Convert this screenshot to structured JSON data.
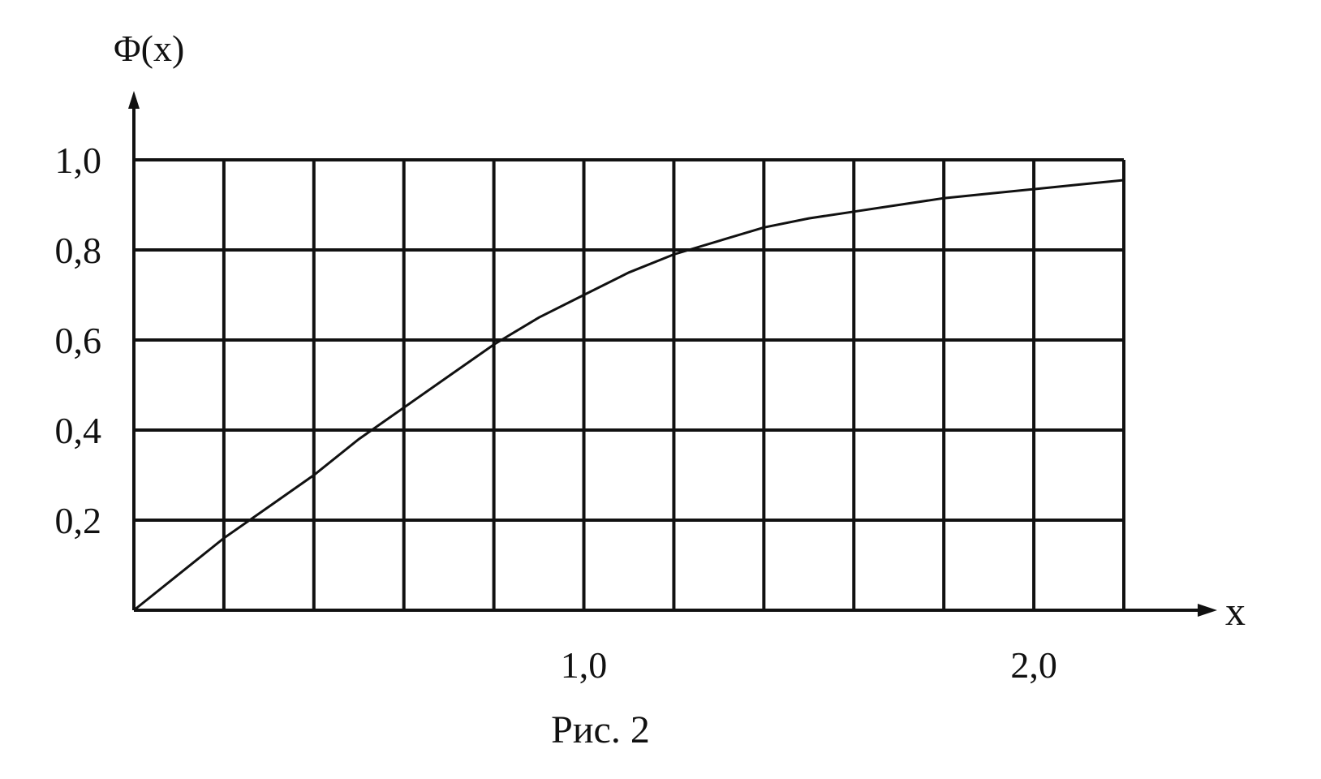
{
  "figure": {
    "caption": "Рис. 2"
  },
  "chart_data": {
    "type": "line",
    "xlabel": "x",
    "ylabel": "Φ(x)",
    "xlim": [
      0,
      2.2
    ],
    "ylim": [
      0,
      1.0
    ],
    "grid": true,
    "x_gridlines": [
      0.2,
      0.4,
      0.6,
      0.8,
      1.0,
      1.2,
      1.4,
      1.6,
      1.8,
      2.0,
      2.2
    ],
    "y_gridlines": [
      0.2,
      0.4,
      0.6,
      0.8,
      1.0
    ],
    "x_ticks": [
      {
        "value": 1.0,
        "label": "1,0"
      },
      {
        "value": 2.0,
        "label": "2,0"
      }
    ],
    "y_ticks": [
      {
        "value": 0.2,
        "label": "0,2"
      },
      {
        "value": 0.4,
        "label": "0,4"
      },
      {
        "value": 0.6,
        "label": "0,6"
      },
      {
        "value": 0.8,
        "label": "0,8"
      },
      {
        "value": 1.0,
        "label": "1,0"
      }
    ],
    "series": [
      {
        "x": [
          0,
          0.1,
          0.2,
          0.3,
          0.4,
          0.5,
          0.6,
          0.7,
          0.8,
          0.9,
          1.0,
          1.1,
          1.2,
          1.3,
          1.4,
          1.5,
          1.6,
          1.7,
          1.8,
          1.9,
          2.0,
          2.1,
          2.2
        ],
        "y": [
          0,
          0.08,
          0.16,
          0.23,
          0.3,
          0.38,
          0.45,
          0.52,
          0.59,
          0.65,
          0.7,
          0.75,
          0.79,
          0.82,
          0.85,
          0.87,
          0.885,
          0.9,
          0.915,
          0.925,
          0.935,
          0.945,
          0.955
        ]
      }
    ]
  }
}
